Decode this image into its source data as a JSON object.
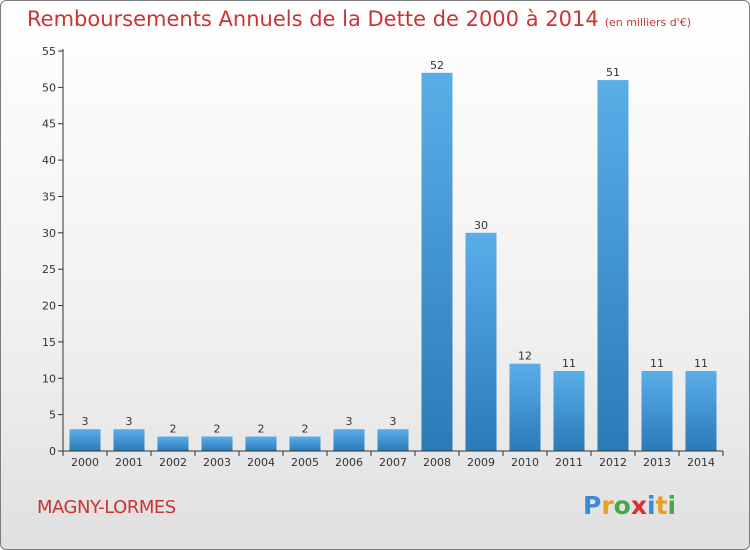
{
  "title": "Remboursements Annuels de la Dette de 2000 à 2014",
  "unit_note": "(en milliers d'€)",
  "commune": "MAGNY-LORMES",
  "logo": {
    "text": "Proxiti",
    "letters": [
      {
        "ch": "P",
        "color": "#3b8ad8"
      },
      {
        "ch": "r",
        "color": "#e8a020"
      },
      {
        "ch": "o",
        "color": "#44aa44"
      },
      {
        "ch": "x",
        "color": "#d83030"
      },
      {
        "ch": "i",
        "color": "#3b8ad8"
      },
      {
        "ch": "t",
        "color": "#e8a020"
      },
      {
        "ch": "i",
        "color": "#44aa44"
      }
    ]
  },
  "colors": {
    "accent": "#cc3333",
    "bar_light": "#5aaee8",
    "bar_dark": "#2a7ab8",
    "axis": "#333333"
  },
  "chart_data": {
    "type": "bar",
    "categories": [
      "2000",
      "2001",
      "2002",
      "2003",
      "2004",
      "2005",
      "2006",
      "2007",
      "2008",
      "2009",
      "2010",
      "2011",
      "2012",
      "2013",
      "2014"
    ],
    "values": [
      3,
      3,
      2,
      2,
      2,
      2,
      3,
      3,
      52,
      30,
      12,
      11,
      51,
      11,
      11
    ],
    "ylim": [
      0,
      55
    ],
    "yticks": [
      0,
      5,
      10,
      15,
      20,
      25,
      30,
      35,
      40,
      45,
      50,
      55
    ],
    "grid": false,
    "legend": "none"
  }
}
